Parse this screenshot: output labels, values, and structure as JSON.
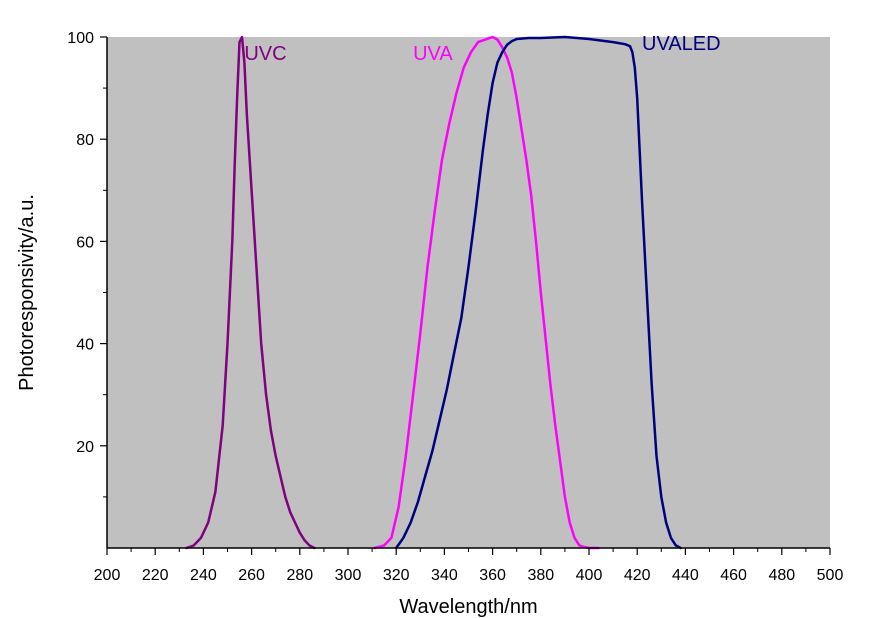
{
  "chart_data": {
    "type": "line",
    "title": "",
    "xlabel": "Wavelength/nm",
    "ylabel": "Photoresponsivity/a.u.",
    "xlim": [
      200,
      500
    ],
    "ylim": [
      0,
      100
    ],
    "x_ticks": [
      200,
      220,
      240,
      260,
      280,
      300,
      320,
      340,
      360,
      380,
      400,
      420,
      440,
      460,
      480,
      500
    ],
    "y_ticks": [
      20,
      40,
      60,
      80,
      100
    ],
    "background": "#c0c0c0",
    "grid": false,
    "legend": "inline labels",
    "series": [
      {
        "name": "UVC",
        "color": "#800080",
        "x": [
          233,
          236,
          239,
          242,
          245,
          248,
          250,
          252,
          253,
          254,
          255,
          256,
          257,
          258,
          260,
          262,
          264,
          266,
          268,
          270,
          272,
          274,
          276,
          278,
          280,
          282,
          284,
          286
        ],
        "y": [
          0,
          0.5,
          2,
          5,
          11,
          24,
          40,
          60,
          75,
          88,
          99,
          100,
          95,
          85,
          70,
          55,
          40,
          30,
          23,
          18,
          14,
          10,
          7,
          5,
          3,
          1.5,
          0.5,
          0
        ]
      },
      {
        "name": "UVA",
        "color": "#ff00ff",
        "x": [
          311,
          315,
          318,
          321,
          324,
          327,
          330,
          333,
          336,
          339,
          342,
          345,
          348,
          351,
          354,
          357,
          360,
          362,
          364,
          366,
          368,
          370,
          372,
          374,
          376,
          378,
          380,
          382,
          384,
          386,
          388,
          390,
          392,
          394,
          396,
          398,
          400,
          402,
          404
        ],
        "y": [
          0,
          0.5,
          2,
          8,
          18,
          30,
          42,
          55,
          66,
          76,
          83,
          89,
          94,
          97,
          99,
          99.5,
          100,
          99.5,
          98,
          96,
          93,
          88,
          82,
          76,
          69,
          60,
          50,
          41,
          32,
          24,
          17,
          10,
          5,
          2,
          0.5,
          0.2,
          0,
          0,
          0
        ]
      },
      {
        "name": "UVALED",
        "color": "#000080",
        "x": [
          320,
          323,
          326,
          329,
          332,
          335,
          338,
          341,
          344,
          347,
          350,
          353,
          356,
          358,
          360,
          362,
          364,
          366,
          368,
          370,
          375,
          380,
          390,
          400,
          410,
          415,
          417,
          418,
          419,
          420,
          421,
          422,
          424,
          426,
          428,
          430,
          432,
          434,
          436,
          438
        ],
        "y": [
          0,
          2,
          5,
          9,
          14,
          19,
          25,
          31,
          38,
          45,
          55,
          66,
          78,
          85,
          91,
          95,
          97,
          98.5,
          99.2,
          99.6,
          99.8,
          99.8,
          100,
          99.6,
          99,
          98.6,
          98.2,
          97,
          94,
          88,
          78,
          68,
          50,
          32,
          18,
          10,
          5,
          2,
          0.5,
          0
        ]
      }
    ],
    "annotations": [
      {
        "text": "UVC",
        "x": 257,
        "y": 95.5,
        "color": "#800080"
      },
      {
        "text": "UVA",
        "x": 327,
        "y": 95.5,
        "color": "#ff00ff"
      },
      {
        "text": "UVALED",
        "x": 422,
        "y": 97.5,
        "color": "#000080"
      }
    ]
  }
}
